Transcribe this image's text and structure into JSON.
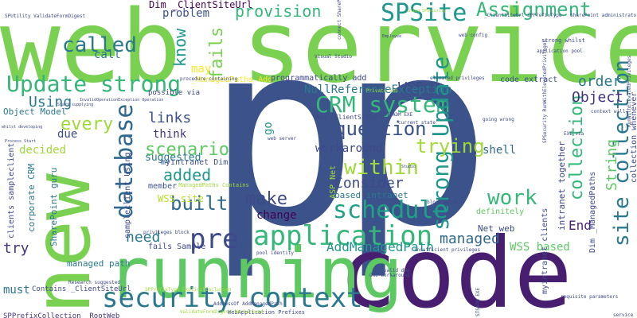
{
  "words": [
    {
      "text": "web service",
      "color": "#7ad151"
    },
    {
      "text": "p",
      "color": "#3b528b"
    },
    {
      "text": "p",
      "color": "#3b528b"
    },
    {
      "text": "code",
      "color": "#481f70"
    },
    {
      "text": "running",
      "color": "#5ec962"
    },
    {
      "text": "new",
      "color": "#7ad151"
    },
    {
      "text": "security context",
      "color": "#2a788e"
    },
    {
      "text": "application",
      "color": "#35b779"
    },
    {
      "text": "schedule",
      "color": "#1fa187"
    },
    {
      "text": "CRM system",
      "color": "#35b779"
    },
    {
      "text": "database",
      "color": "#31688e"
    },
    {
      "text": "Update strong",
      "color": "#35b779"
    },
    {
      "text": "strong Update",
      "color": "#1f988b"
    },
    {
      "text": "SPSite",
      "color": "#1f988b"
    },
    {
      "text": "Assignment",
      "color": "#35b779"
    },
    {
      "text": "called",
      "color": "#2a788e"
    },
    {
      "text": "provision",
      "color": "#35b779"
    },
    {
      "text": "fails",
      "color": "#7ad151"
    },
    {
      "text": "know",
      "color": "#1f988b"
    },
    {
      "text": "within",
      "color": "#a0da39"
    },
    {
      "text": "question",
      "color": "#3b528b"
    },
    {
      "text": "trying",
      "color": "#a0da39"
    },
    {
      "text": "work",
      "color": "#35b779"
    },
    {
      "text": "site collection",
      "color": "#2a788e"
    },
    {
      "text": "collection",
      "color": "#35b779"
    },
    {
      "text": "every",
      "color": "#a0da39"
    },
    {
      "text": "built",
      "color": "#31688e"
    },
    {
      "text": "make",
      "color": "#3e4989"
    },
    {
      "text": "pre",
      "color": "#3e4989"
    },
    {
      "text": "links",
      "color": "#3b528b"
    },
    {
      "text": "scenario",
      "color": "#5ec962"
    },
    {
      "text": "added",
      "color": "#1f988b"
    },
    {
      "text": "Using",
      "color": "#2a788e"
    },
    {
      "text": "WSS",
      "color": "#3e4989"
    },
    {
      "text": "order",
      "color": "#2a788e"
    },
    {
      "text": "Object",
      "color": "#46337f"
    },
    {
      "text": "String",
      "color": "#5ec962"
    },
    {
      "text": "Consider",
      "color": "#3e4989"
    },
    {
      "text": "managed",
      "color": "#31688e"
    },
    {
      "text": "End",
      "color": "#481f70"
    },
    {
      "text": "need",
      "color": "#2a788e"
    },
    {
      "text": "try",
      "color": "#46337f"
    },
    {
      "text": "AddManagedPath",
      "color": "#1f988b"
    },
    {
      "text": "WSS based",
      "color": "#5ec962"
    },
    {
      "text": "NullReferenceException",
      "color": "#2a788e"
    },
    {
      "text": "workaround",
      "color": "#3e4989"
    },
    {
      "text": "think",
      "color": "#46337f"
    },
    {
      "text": "suggested",
      "color": "#2a788e"
    },
    {
      "text": "decided",
      "color": "#a0da39"
    },
    {
      "text": "change",
      "color": "#440154"
    },
    {
      "text": "call",
      "color": "#2a788e"
    },
    {
      "text": "problem",
      "color": "#3b528b"
    },
    {
      "text": "may",
      "color": "#fde725"
    },
    {
      "text": "shell",
      "color": "#31688e"
    },
    {
      "text": "go",
      "color": "#1f988b"
    },
    {
      "text": "due",
      "color": "#3e4989"
    },
    {
      "text": "must",
      "color": "#2a788e"
    },
    {
      "text": "Object Model",
      "color": "#2a788e"
    },
    {
      "text": "Dim _ClientSiteUrl",
      "color": "#440154"
    },
    {
      "text": "_ManagedPaths Add",
      "color": "#fde725"
    },
    {
      "text": "programmatically add",
      "color": "#3e4989"
    },
    {
      "text": "code extract",
      "color": "#3b528b"
    },
    {
      "text": "definitely",
      "color": "#5ec962"
    },
    {
      "text": "based intranet",
      "color": "#2a788e"
    },
    {
      "text": "Net web",
      "color": "#3e4989"
    },
    {
      "text": "myintranet Dim",
      "color": "#3b528b"
    },
    {
      "text": "sampleclient Using",
      "color": "#3e4989"
    },
    {
      "text": "member",
      "color": "#3b528b"
    },
    {
      "text": "managed path",
      "color": "#2a788e"
    },
    {
      "text": "fails Sample",
      "color": "#3e4989"
    },
    {
      "text": "WSS site",
      "color": "#b5de2b"
    },
    {
      "text": "corporate CRM",
      "color": "#2a788e"
    },
    {
      "text": "clients sampleclient",
      "color": "#3e4989"
    },
    {
      "text": "SharePoint guru",
      "color": "#2a788e"
    },
    {
      "text": "intranet together",
      "color": "#3e4989"
    },
    {
      "text": "myintranet clients",
      "color": "#3e4989"
    },
    {
      "text": "Dim _ManagedPaths",
      "color": "#3e4989"
    },
    {
      "text": "collection whenever",
      "color": "#3e4989"
    },
    {
      "text": "Contains _ClientSiteUrl",
      "color": "#3e4989"
    },
    {
      "text": "SPPrefixCollection _RootWeb",
      "color": "#46337f"
    },
    {
      "text": "WebApplication Prefixes",
      "color": "#3e4989"
    },
    {
      "text": "possible via",
      "color": "#3e4989"
    },
    {
      "text": "Add _ClientSiteUrl",
      "color": "#3e4989"
    },
    {
      "text": "ASP Net",
      "color": "#a0da39"
    },
    {
      "text": "STSADM EXE",
      "color": "#3e4989"
    },
    {
      "text": "SPUtility ValidateFormDigest",
      "color": "#3e4989"
    },
    {
      "text": "_ClientSiteUrl SPPrefixType",
      "color": "#3e4989"
    },
    {
      "text": "SharePoint administrators",
      "color": "#3e4989"
    },
    {
      "text": "Visual Studio",
      "color": "#3e4989"
    },
    {
      "text": "strong whilst",
      "color": "#3e4989"
    },
    {
      "text": "elevated privileges",
      "color": "#3e4989"
    },
    {
      "text": "procedure containing",
      "color": "#3e4989"
    },
    {
      "text": "InvalidOperationException Operation",
      "color": "#3e4989"
    },
    {
      "text": "Start supplying",
      "color": "#3e4989"
    },
    {
      "text": "whilst developing",
      "color": "#3e4989"
    },
    {
      "text": "Process Start",
      "color": "#3e4989"
    },
    {
      "text": "_ManagedPaths Contains",
      "color": "#a0da39"
    },
    {
      "text": "SPPrefixType ExplicitInclusion",
      "color": "#a0da39"
    },
    {
      "text": "block using",
      "color": "#3e4989"
    },
    {
      "text": "Research suggested",
      "color": "#3e4989"
    },
    {
      "text": "valid due",
      "color": "#3e4989"
    },
    {
      "text": "One workaround",
      "color": "#3e4989"
    },
    {
      "text": "insufficient privileges",
      "color": "#3e4989"
    },
    {
      "text": "AddressOf AddManagedPath",
      "color": "#3e4989"
    },
    {
      "text": "requisite parameters",
      "color": "#3e4989"
    },
    {
      "text": "service runs",
      "color": "#3e4989"
    },
    {
      "text": "current state",
      "color": "#3e4989"
    },
    {
      "text": "EXE via",
      "color": "#3e4989"
    },
    {
      "text": "context will",
      "color": "#3e4989"
    },
    {
      "text": "web config",
      "color": "#3e4989"
    },
    {
      "text": "application pool",
      "color": "#3e4989"
    },
    {
      "text": "pool identity",
      "color": "#3e4989"
    },
    {
      "text": "Employee",
      "color": "#3e4989"
    },
    {
      "text": "using SPSecurity",
      "color": "#a0da39"
    },
    {
      "text": "SPSecurity RunWithElevatedPrivileges",
      "color": "#3e4989"
    },
    {
      "text": "ValidateFormDigest Workaround",
      "color": "#a0da39"
    },
    {
      "text": "connect SharePoint",
      "color": "#3e4989"
    },
    {
      "text": "STSADM EXE",
      "color": "#3e4989"
    },
    {
      "text": "RunWithElevatedPrivileges",
      "color": "#3e4989"
    },
    {
      "text": "Studio",
      "color": "#3e4989"
    },
    {
      "text": "web server",
      "color": "#3e4989"
    },
    {
      "text": "Private Sub",
      "color": "#a0da39"
    },
    {
      "text": "going wrong",
      "color": "#3e4989"
    },
    {
      "text": "privileges block",
      "color": "#3e4989"
    }
  ]
}
